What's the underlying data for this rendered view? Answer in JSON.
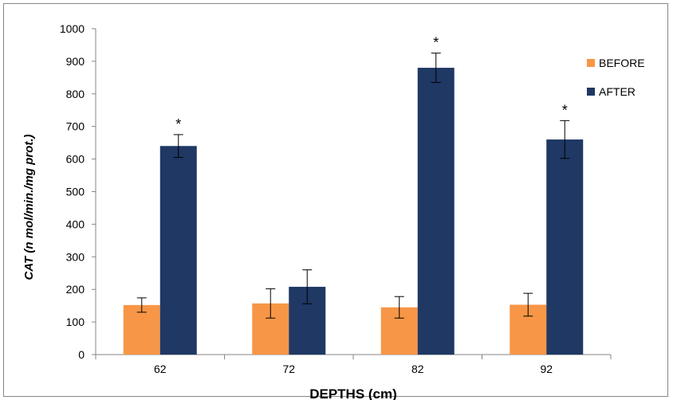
{
  "chart_data": {
    "type": "bar",
    "title": "",
    "xlabel": "DEPTHS (cm)",
    "ylabel": "CAT (n mol/min./mg prot.)",
    "categories": [
      "62",
      "72",
      "82",
      "92"
    ],
    "ylim": [
      0,
      1000
    ],
    "yticks": [
      "0",
      "100",
      "200",
      "300",
      "400",
      "500",
      "600",
      "700",
      "800",
      "900",
      "1000"
    ],
    "grid": false,
    "legend_position": "right",
    "series": [
      {
        "name": "BEFORE",
        "color": "#f79646",
        "values": [
          152,
          157,
          145,
          153
        ],
        "errors": [
          22,
          45,
          33,
          35
        ]
      },
      {
        "name": "AFTER",
        "color": "#1f3864",
        "values": [
          640,
          208,
          880,
          660
        ],
        "errors": [
          35,
          52,
          45,
          58
        ]
      }
    ],
    "significance_marker": "*",
    "significance": [
      true,
      false,
      true,
      true
    ]
  }
}
